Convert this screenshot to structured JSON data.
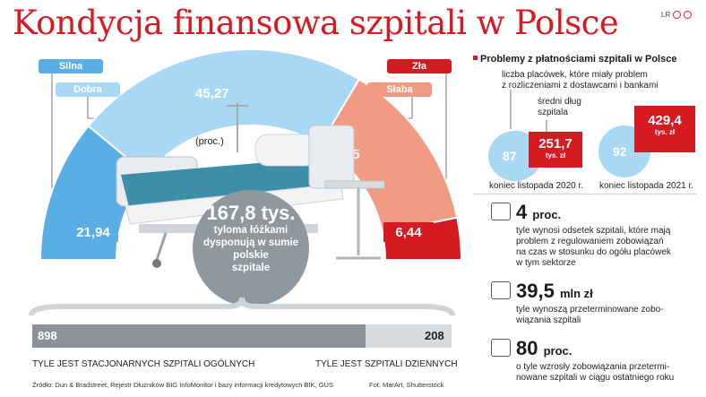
{
  "title": "Kondycja finansowa szpitali w Polsce",
  "logo_text": "LR",
  "legend": {
    "silna": "Silna",
    "dobra": "Dobra",
    "zla": "Zła",
    "slaba": "Słaba",
    "proc": "(proc.)"
  },
  "colors": {
    "silna": "#5aaee6",
    "dobra": "#a9d8f4",
    "slaba": "#f19b83",
    "zla": "#d61a22",
    "gray": "#8e989e",
    "bar_dark": "#8a9399",
    "bar_light": "#d7dbde"
  },
  "center": {
    "value": "167,8 tys.",
    "line1": "tyloma łóżkami",
    "line2": "dysponują w sumie",
    "line3": "polskie",
    "line4": "szpitale"
  },
  "bar": {
    "left_value": "898",
    "right_value": "208",
    "left_label": "TYLE JEST STACJONARNYCH SZPITALI OGÓLNYCH",
    "right_label": "TYLE JEST SZPITALI DZIENNYCH"
  },
  "footer": {
    "source": "Źródło: Dun & Bradstreet, Rejestr Dłużników BIG InfoMonitor i bazy informacji kredytowych BIK, GUS",
    "photo": "Fot. MarArt, Shutterstock"
  },
  "right": {
    "title": "Problemy z płatnościami szpitali w Polsce",
    "desc1": "liczba placówek, które miały problem",
    "desc2": "z rozliczeniami z dostawcami i bankami",
    "debt1": "średni dług",
    "debt2": "szpitala",
    "p2020": {
      "count": "87",
      "debt": "251,7",
      "unit": "tys. zł",
      "label": "koniec listopada 2020 r."
    },
    "p2021": {
      "count": "92",
      "debt": "429,4",
      "unit": "tys. zł",
      "label": "koniec listopada 2021 r."
    },
    "s1": {
      "value": "4",
      "unit": "proc.",
      "l1": "tyle wynosi odsetek szpitali, które mają",
      "l2": "problem z regulowaniem zobowiązań",
      "l3": "na czas w stosunku do ogółu placówek",
      "l4": "w tym sektorze"
    },
    "s2": {
      "value": "39,5",
      "unit": "mln zł",
      "l1": "tyle wynoszą przeterminowane zobo-",
      "l2": "wiązania szpitali"
    },
    "s3": {
      "value": "80",
      "unit": "proc.",
      "l1": "o tyle wzrosły zobowiązania przetermi-",
      "l2": "nowane szpitali w ciągu ostatniego roku"
    }
  },
  "chart_data": {
    "type": "pie",
    "categories": [
      "Silna",
      "Dobra",
      "Słaba",
      "Zła"
    ],
    "values": [
      21.94,
      45.27,
      26.35,
      6.44
    ],
    "labels": [
      "21,94",
      "45,27",
      "26,35",
      "6,44"
    ],
    "unit": "(proc.)",
    "bar": {
      "categories": [
        "stacjonarne szpitale ogólne",
        "szpitale dzienne"
      ],
      "values": [
        898,
        208
      ]
    }
  }
}
